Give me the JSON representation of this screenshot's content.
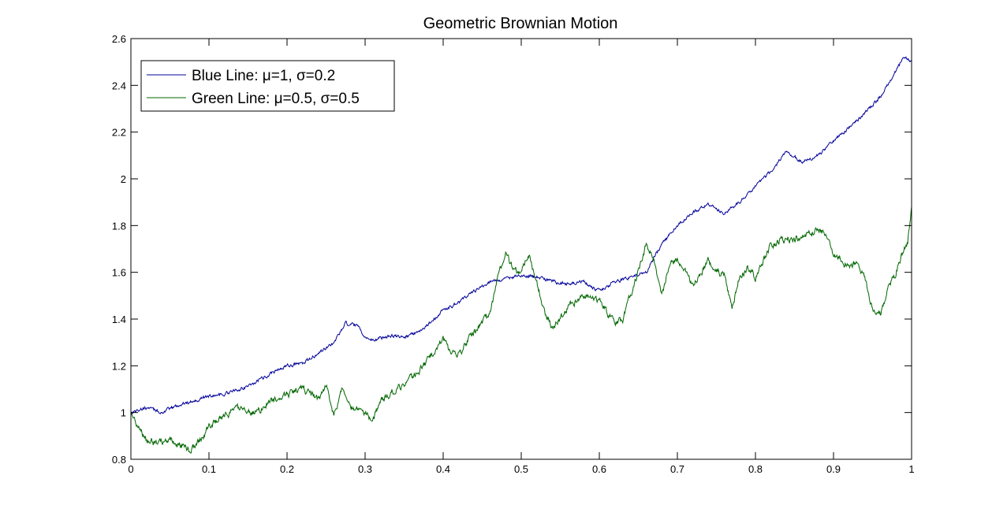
{
  "chart_data": {
    "type": "line",
    "title": "Geometric Brownian Motion",
    "xlabel": "",
    "ylabel": "",
    "xlim": [
      0,
      1
    ],
    "ylim": [
      0.8,
      2.6
    ],
    "x_ticks": [
      0,
      0.1,
      0.2,
      0.3,
      0.4,
      0.5,
      0.6,
      0.7,
      0.8,
      0.9,
      1
    ],
    "x_tick_labels": [
      "0",
      "0.1",
      "0.2",
      "0.3",
      "0.4",
      "0.5",
      "0.6",
      "0.7",
      "0.8",
      "0.9",
      "1"
    ],
    "y_ticks": [
      0.8,
      1,
      1.2,
      1.4,
      1.6,
      1.8,
      2,
      2.2,
      2.4,
      2.6
    ],
    "y_tick_labels": [
      "0.8",
      "1",
      "1.2",
      "1.4",
      "1.6",
      "1.8",
      "2",
      "2.2",
      "2.4",
      "2.6"
    ],
    "grid": false,
    "legend_position": "top-left",
    "series": [
      {
        "name": "Blue Line: μ=1, σ=0.2",
        "color": "#000099",
        "x": [
          0,
          0.02,
          0.04,
          0.06,
          0.08,
          0.1,
          0.12,
          0.14,
          0.16,
          0.18,
          0.2,
          0.22,
          0.24,
          0.26,
          0.275,
          0.29,
          0.3,
          0.31,
          0.33,
          0.35,
          0.37,
          0.39,
          0.4,
          0.42,
          0.44,
          0.46,
          0.48,
          0.5,
          0.52,
          0.54,
          0.56,
          0.58,
          0.6,
          0.62,
          0.64,
          0.66,
          0.68,
          0.7,
          0.72,
          0.74,
          0.76,
          0.78,
          0.8,
          0.82,
          0.84,
          0.86,
          0.88,
          0.9,
          0.92,
          0.94,
          0.96,
          0.98,
          0.99,
          1.0
        ],
        "y": [
          1.0,
          1.02,
          1.0,
          1.03,
          1.05,
          1.07,
          1.08,
          1.1,
          1.13,
          1.17,
          1.2,
          1.21,
          1.25,
          1.3,
          1.38,
          1.37,
          1.32,
          1.31,
          1.33,
          1.32,
          1.35,
          1.4,
          1.44,
          1.47,
          1.52,
          1.56,
          1.57,
          1.59,
          1.58,
          1.56,
          1.55,
          1.56,
          1.52,
          1.56,
          1.58,
          1.6,
          1.72,
          1.8,
          1.86,
          1.89,
          1.85,
          1.9,
          1.97,
          2.03,
          2.12,
          2.07,
          2.1,
          2.16,
          2.22,
          2.28,
          2.35,
          2.46,
          2.52,
          2.5
        ]
      },
      {
        "name": "Green Line: μ=0.5, σ=0.5",
        "color": "#006600",
        "x": [
          0,
          0.01,
          0.02,
          0.03,
          0.05,
          0.07,
          0.075,
          0.09,
          0.1,
          0.12,
          0.14,
          0.16,
          0.18,
          0.2,
          0.22,
          0.24,
          0.25,
          0.26,
          0.27,
          0.28,
          0.29,
          0.3,
          0.31,
          0.32,
          0.34,
          0.36,
          0.38,
          0.4,
          0.41,
          0.42,
          0.44,
          0.46,
          0.47,
          0.48,
          0.49,
          0.5,
          0.51,
          0.52,
          0.53,
          0.54,
          0.56,
          0.58,
          0.6,
          0.62,
          0.63,
          0.65,
          0.66,
          0.67,
          0.68,
          0.69,
          0.7,
          0.72,
          0.74,
          0.76,
          0.77,
          0.78,
          0.79,
          0.8,
          0.82,
          0.84,
          0.86,
          0.88,
          0.89,
          0.9,
          0.92,
          0.93,
          0.94,
          0.95,
          0.96,
          0.97,
          0.98,
          0.99,
          0.995,
          1.0
        ],
        "y": [
          0.98,
          0.95,
          0.88,
          0.87,
          0.88,
          0.85,
          0.84,
          0.89,
          0.94,
          0.99,
          1.02,
          1.0,
          1.05,
          1.08,
          1.1,
          1.06,
          1.12,
          0.99,
          1.1,
          1.02,
          1.02,
          0.99,
          0.96,
          1.05,
          1.1,
          1.15,
          1.22,
          1.32,
          1.25,
          1.25,
          1.35,
          1.42,
          1.58,
          1.68,
          1.62,
          1.6,
          1.68,
          1.55,
          1.43,
          1.36,
          1.45,
          1.5,
          1.48,
          1.38,
          1.4,
          1.6,
          1.72,
          1.65,
          1.5,
          1.64,
          1.65,
          1.55,
          1.65,
          1.58,
          1.45,
          1.58,
          1.62,
          1.58,
          1.72,
          1.74,
          1.75,
          1.78,
          1.76,
          1.68,
          1.62,
          1.65,
          1.58,
          1.45,
          1.42,
          1.53,
          1.6,
          1.7,
          1.73,
          1.88
        ]
      }
    ]
  }
}
